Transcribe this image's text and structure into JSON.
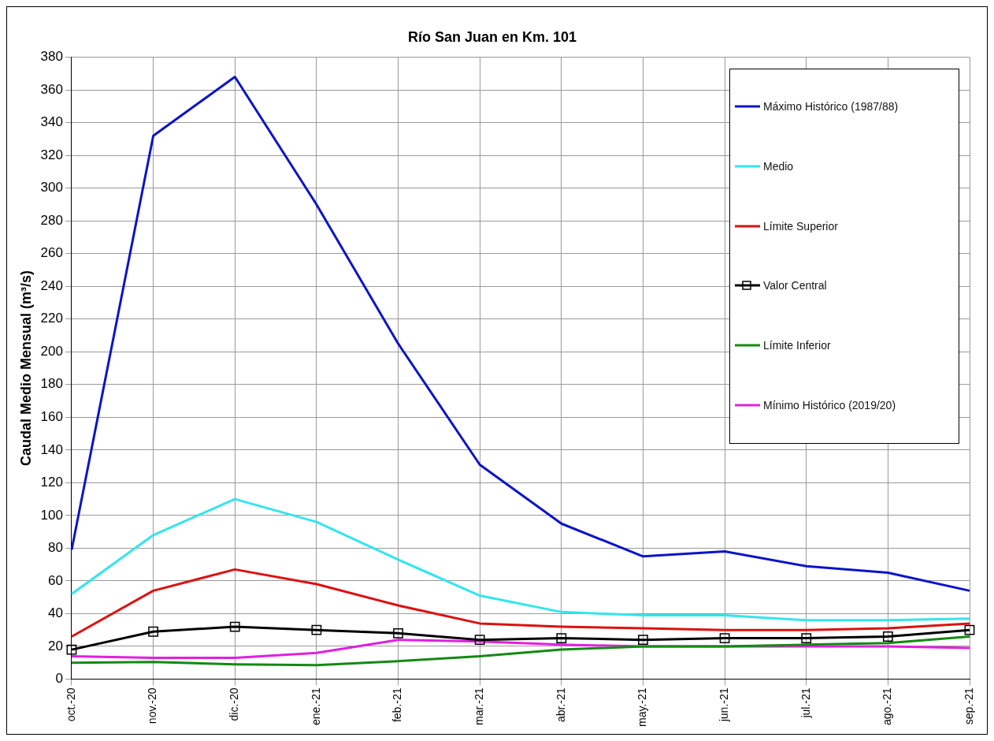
{
  "chart_data": {
    "type": "line",
    "title": "Río San Juan en Km. 101",
    "ylabel": "Caudal Medio Mensual (m³/s)",
    "categories": [
      "oct.-20",
      "nov.-20",
      "dic.-20",
      "ene.-21",
      "feb.-21",
      "mar.-21",
      "abr.-21",
      "may.-21",
      "jun.-21",
      "jul.-21",
      "ago.-21",
      "sep.-21"
    ],
    "ylim": [
      0,
      380
    ],
    "yticks": [
      0,
      20,
      40,
      60,
      80,
      100,
      120,
      140,
      160,
      180,
      200,
      220,
      240,
      260,
      280,
      300,
      320,
      340,
      360,
      380
    ],
    "grid": true,
    "legend": "top right",
    "marker": "none",
    "line_style": "solid",
    "series": [
      {
        "name": "Máximo Histórico (1987/88)",
        "color": "#0b14c8",
        "values": [
          79,
          332,
          368,
          290,
          205,
          131,
          95,
          75,
          78,
          69,
          65,
          54
        ]
      },
      {
        "name": "Medio",
        "color": "#33e5ee",
        "values": [
          52,
          88,
          110,
          96,
          73,
          51,
          41,
          39,
          39,
          36,
          36,
          37
        ]
      },
      {
        "name": "Límite Superior",
        "color": "#dd1111",
        "values": [
          26,
          54,
          67,
          58,
          45,
          34,
          32,
          31,
          30,
          30,
          31,
          34
        ]
      },
      {
        "name": "Valor Central",
        "color": "#000000",
        "marker": "square",
        "values": [
          18,
          29,
          32,
          30,
          28,
          24,
          25,
          24,
          25,
          25,
          26,
          30
        ]
      },
      {
        "name": "Límite Inferior",
        "color": "#138a13",
        "values": [
          10,
          10.5,
          9,
          8.5,
          11,
          14,
          18,
          20,
          20,
          21,
          22,
          26
        ]
      },
      {
        "name": "Mínimo Histórico (2019/20)",
        "color": "#e020e0",
        "values": [
          14,
          13,
          13,
          16,
          24,
          23,
          21,
          20,
          20,
          20,
          20,
          19
        ]
      }
    ]
  }
}
